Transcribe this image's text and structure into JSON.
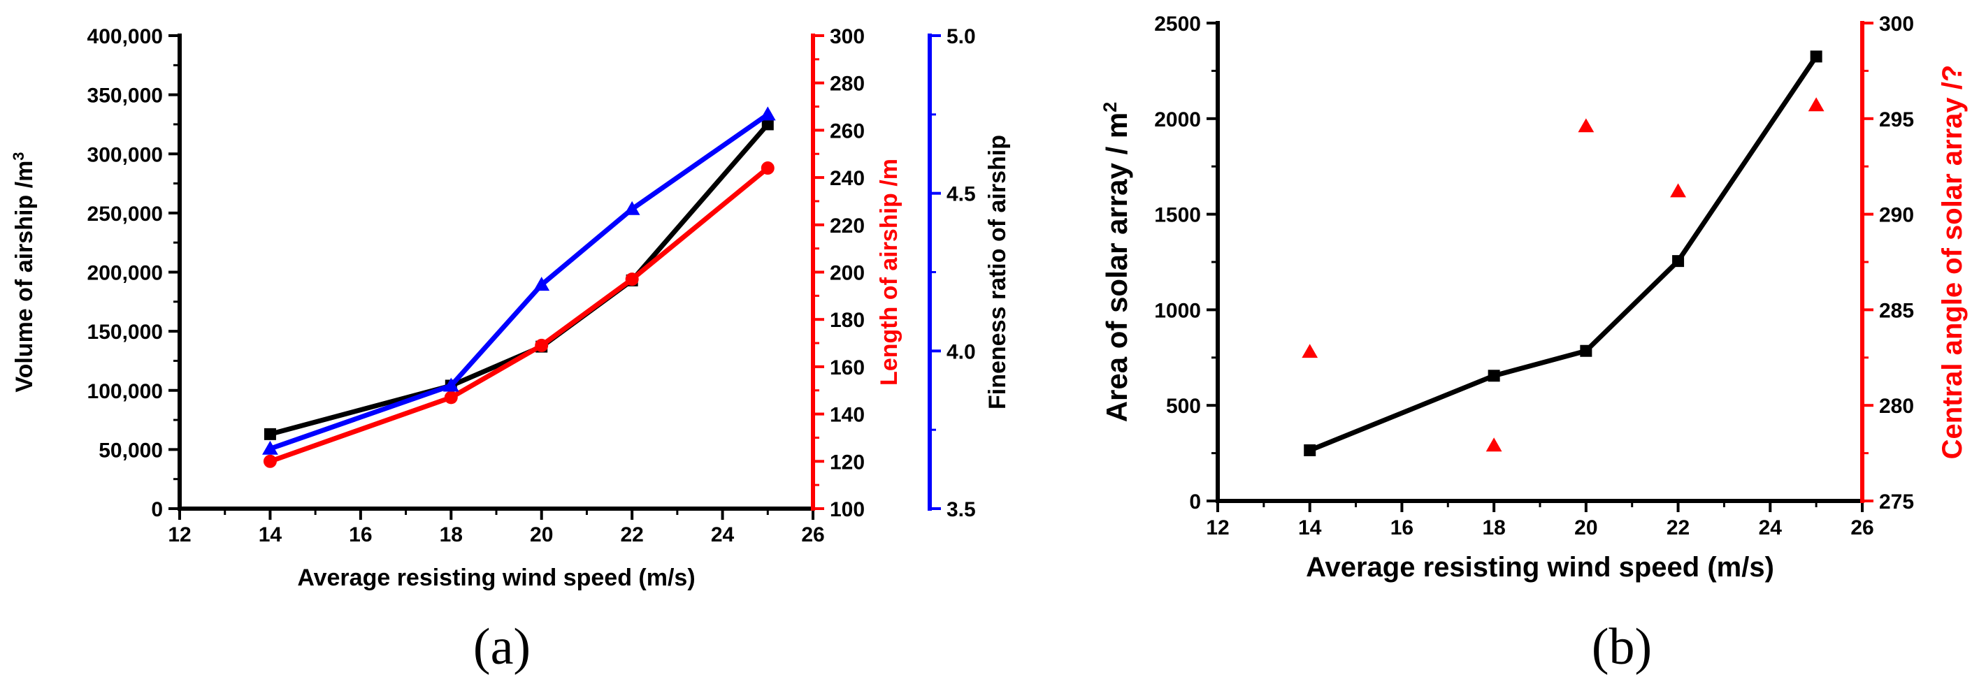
{
  "panel_labels": {
    "a": "(a)",
    "b": "(b)"
  },
  "colors": {
    "black": "#000000",
    "red": "#ff0000",
    "blue": "#0000ff"
  },
  "chart_data": [
    {
      "type": "line",
      "panel": "a",
      "xlabel": "Average resisting wind speed (m/s)",
      "xlim": [
        12,
        26
      ],
      "xticks": [
        12,
        14,
        16,
        18,
        20,
        22,
        24,
        26
      ],
      "axes": [
        {
          "id": "volume",
          "label": "Volume of airship /m3",
          "label_text": "Volume of airship /m",
          "label_sup": "3",
          "color": "#000000",
          "side": "left",
          "ylim": [
            0,
            400000
          ],
          "ticks": [
            0,
            50000,
            100000,
            150000,
            200000,
            250000,
            300000,
            350000,
            400000
          ],
          "tick_labels": [
            "0",
            "50,000",
            "100,000",
            "150,000",
            "200,000",
            "250,000",
            "300,000",
            "350,000",
            "400,000"
          ]
        },
        {
          "id": "length",
          "label": "Length of airship /m",
          "color": "#ff0000",
          "side": "right",
          "ylim": [
            100,
            300
          ],
          "ticks": [
            100,
            120,
            140,
            160,
            180,
            200,
            220,
            240,
            260,
            280,
            300
          ],
          "tick_labels": [
            "100",
            "120",
            "140",
            "160",
            "180",
            "200",
            "220",
            "240",
            "260",
            "280",
            "300"
          ]
        },
        {
          "id": "fineness",
          "label": "Fineness ratio of airship",
          "color": "#0000ff",
          "side": "right-offset",
          "ylim": [
            3.5,
            5.0
          ],
          "ticks": [
            3.5,
            4.0,
            4.5,
            5.0
          ],
          "tick_labels": [
            "3.5",
            "4.0",
            "4.5",
            "5.0"
          ]
        }
      ],
      "series": [
        {
          "name": "Volume of airship",
          "axis": "volume",
          "color": "#000000",
          "marker": "square",
          "line": true,
          "x": [
            14,
            18,
            20,
            22,
            25
          ],
          "y": [
            63000,
            104000,
            137000,
            193000,
            325000
          ]
        },
        {
          "name": "Length of airship",
          "axis": "length",
          "color": "#ff0000",
          "marker": "circle",
          "line": true,
          "x": [
            14,
            18,
            20,
            22,
            25
          ],
          "y": [
            120,
            147,
            169,
            197,
            244
          ]
        },
        {
          "name": "Fineness ratio of airship",
          "axis": "fineness",
          "color": "#0000ff",
          "marker": "triangle",
          "line": true,
          "x": [
            14,
            18,
            20,
            22,
            25
          ],
          "y": [
            3.69,
            3.89,
            4.21,
            4.45,
            4.75
          ]
        }
      ]
    },
    {
      "type": "line",
      "panel": "b",
      "xlabel": "Average resisting wind speed (m/s)",
      "xlim": [
        12,
        26
      ],
      "xticks": [
        12,
        14,
        16,
        18,
        20,
        22,
        24,
        26
      ],
      "axes": [
        {
          "id": "area",
          "label": "Area of solar array / m2",
          "label_text": "Area of solar array / m",
          "label_sup": "2",
          "color": "#000000",
          "side": "left",
          "ylim": [
            0,
            2500
          ],
          "ticks": [
            0,
            500,
            1000,
            1500,
            2000,
            2500
          ],
          "tick_labels": [
            "0",
            "500",
            "1000",
            "1500",
            "2000",
            "2500"
          ]
        },
        {
          "id": "angle",
          "label": "Central angle of solar array /?",
          "color": "#ff0000",
          "side": "right",
          "ylim": [
            275,
            300
          ],
          "ticks": [
            275,
            280,
            285,
            290,
            295,
            300
          ],
          "tick_labels": [
            "275",
            "280",
            "285",
            "290",
            "295",
            "300"
          ]
        }
      ],
      "series": [
        {
          "name": "Area of solar array",
          "axis": "area",
          "color": "#000000",
          "marker": "square",
          "line": true,
          "x": [
            14,
            18,
            20,
            22,
            25
          ],
          "y": [
            265,
            655,
            785,
            1255,
            2325
          ]
        },
        {
          "name": "Central angle of solar array",
          "axis": "angle",
          "color": "#ff0000",
          "marker": "triangle",
          "line": false,
          "x": [
            14,
            18,
            20,
            22,
            25
          ],
          "y": [
            282.8,
            277.9,
            294.6,
            291.2,
            295.7
          ]
        }
      ]
    }
  ]
}
